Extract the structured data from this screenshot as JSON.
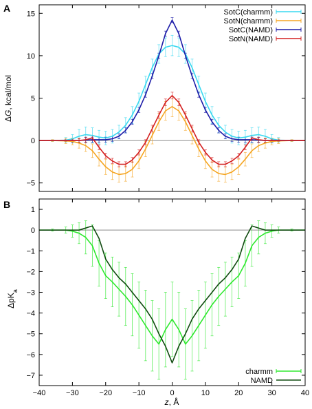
{
  "chart_data": [
    {
      "type": "line",
      "panel_label": "A",
      "ylabel": "ΔG, kcal/mol",
      "xlim": [
        -40,
        40
      ],
      "ylim": [
        -6,
        16
      ],
      "yticks": [
        -5,
        0,
        5,
        10,
        15
      ],
      "xticks": [
        -40,
        -30,
        -20,
        -10,
        0,
        10,
        20,
        30,
        40
      ],
      "zero_line": true,
      "legend_position": "top-right",
      "series": [
        {
          "name": "SotC(charmm)",
          "color": "#38d8f0",
          "error_bars": true,
          "x": [
            -40,
            -36,
            -32,
            -30,
            -28,
            -26,
            -24,
            -22,
            -20,
            -18,
            -16,
            -14,
            -12,
            -10,
            -8,
            -6,
            -4,
            -2,
            0,
            2,
            4,
            6,
            8,
            10,
            12,
            14,
            16,
            18,
            20,
            22,
            24,
            26,
            28,
            30,
            32,
            36,
            40
          ],
          "y": [
            0,
            0,
            0.05,
            0.2,
            0.5,
            0.7,
            0.6,
            0.4,
            0.3,
            0.5,
            1.0,
            1.8,
            3.0,
            4.6,
            6.6,
            8.6,
            10.2,
            11.0,
            11.2,
            11.0,
            10.2,
            8.6,
            6.6,
            4.6,
            3.0,
            1.8,
            1.0,
            0.5,
            0.3,
            0.4,
            0.6,
            0.7,
            0.5,
            0.2,
            0.05,
            0,
            0
          ],
          "err": [
            0,
            0.1,
            0.3,
            0.5,
            0.8,
            0.9,
            0.9,
            0.8,
            0.8,
            0.8,
            0.8,
            0.9,
            1.0,
            1.0,
            1.0,
            1.0,
            1.1,
            1.1,
            1.2,
            1.1,
            1.1,
            1.0,
            1.0,
            1.0,
            1.0,
            0.9,
            0.8,
            0.8,
            0.8,
            0.8,
            0.9,
            0.9,
            0.8,
            0.5,
            0.3,
            0.1,
            0
          ]
        },
        {
          "name": "SotN(charmm)",
          "color": "#f5a623",
          "error_bars": true,
          "x": [
            -40,
            -36,
            -32,
            -30,
            -28,
            -26,
            -24,
            -22,
            -20,
            -18,
            -16,
            -14,
            -12,
            -10,
            -8,
            -6,
            -4,
            -2,
            0,
            2,
            4,
            6,
            8,
            10,
            12,
            14,
            16,
            18,
            20,
            22,
            24,
            26,
            28,
            30,
            32,
            36,
            40
          ],
          "y": [
            0,
            0,
            -0.05,
            -0.1,
            -0.3,
            -0.6,
            -1.2,
            -2.2,
            -3.1,
            -3.7,
            -4.0,
            -3.9,
            -3.4,
            -2.4,
            -1.0,
            0.6,
            2.2,
            3.5,
            4.0,
            3.5,
            2.2,
            0.6,
            -1.0,
            -2.4,
            -3.4,
            -3.9,
            -4.0,
            -3.7,
            -3.1,
            -2.2,
            -1.2,
            -0.6,
            -0.3,
            -0.1,
            -0.05,
            0,
            0
          ],
          "err": [
            0,
            0.1,
            0.3,
            0.4,
            0.6,
            0.7,
            0.8,
            0.8,
            0.9,
            0.9,
            0.9,
            0.9,
            0.9,
            0.9,
            0.9,
            1.0,
            1.0,
            1.1,
            1.2,
            1.1,
            1.0,
            1.0,
            0.9,
            0.9,
            0.9,
            0.9,
            0.9,
            0.9,
            0.9,
            0.8,
            0.8,
            0.7,
            0.6,
            0.4,
            0.3,
            0.1,
            0
          ]
        },
        {
          "name": "SotC(NAMD)",
          "color": "#1c1ca8",
          "error_bars": true,
          "x": [
            -40,
            -36,
            -32,
            -30,
            -28,
            -26,
            -24,
            -22,
            -20,
            -18,
            -16,
            -14,
            -12,
            -10,
            -8,
            -6,
            -4,
            -2,
            0,
            2,
            4,
            6,
            8,
            10,
            12,
            14,
            16,
            18,
            20,
            22,
            24,
            26,
            28,
            30,
            32,
            36,
            40
          ],
          "y": [
            0,
            0,
            0,
            0,
            0,
            0.05,
            0.1,
            0.1,
            0.1,
            0.2,
            0.5,
            1.2,
            2.2,
            3.6,
            5.4,
            7.6,
            10.0,
            12.6,
            14.2,
            12.6,
            10.0,
            7.6,
            5.4,
            3.6,
            2.2,
            1.2,
            0.5,
            0.2,
            0.1,
            0.1,
            0.1,
            0.05,
            0,
            0,
            0,
            0,
            0
          ],
          "err": [
            0,
            0,
            0.1,
            0.2,
            0.2,
            0.3,
            0.3,
            0.3,
            0.3,
            0.3,
            0.3,
            0.3,
            0.3,
            0.3,
            0.3,
            0.3,
            0.3,
            0.3,
            0.3,
            0.3,
            0.3,
            0.3,
            0.3,
            0.3,
            0.3,
            0.3,
            0.3,
            0.3,
            0.3,
            0.3,
            0.3,
            0.3,
            0.2,
            0.2,
            0.1,
            0,
            0
          ]
        },
        {
          "name": "SotN(NAMD)",
          "color": "#d42020",
          "error_bars": true,
          "x": [
            -40,
            -36,
            -32,
            -30,
            -28,
            -26,
            -24,
            -22,
            -20,
            -18,
            -16,
            -14,
            -12,
            -10,
            -8,
            -6,
            -4,
            -2,
            0,
            2,
            4,
            6,
            8,
            10,
            12,
            14,
            16,
            18,
            20,
            22,
            24,
            26,
            28,
            30,
            32,
            36,
            40
          ],
          "y": [
            0,
            0,
            0,
            0,
            0,
            0.1,
            0.3,
            -0.8,
            -1.8,
            -2.4,
            -2.8,
            -2.8,
            -2.3,
            -1.4,
            -0.2,
            1.4,
            3.0,
            4.5,
            5.3,
            4.5,
            3.0,
            1.4,
            -0.2,
            -1.4,
            -2.3,
            -2.8,
            -2.8,
            -2.4,
            -1.8,
            -0.8,
            0.3,
            0.1,
            0,
            0,
            0,
            0,
            0
          ],
          "err": [
            0,
            0,
            0.1,
            0.1,
            0.2,
            0.3,
            0.3,
            0.3,
            0.3,
            0.3,
            0.3,
            0.3,
            0.3,
            0.3,
            0.3,
            0.4,
            0.4,
            0.4,
            0.4,
            0.4,
            0.4,
            0.4,
            0.3,
            0.3,
            0.3,
            0.3,
            0.3,
            0.3,
            0.3,
            0.3,
            0.3,
            0.3,
            0.2,
            0.1,
            0.1,
            0,
            0
          ]
        }
      ]
    },
    {
      "type": "line",
      "panel_label": "B",
      "ylabel": "ΔpKa",
      "xlabel": "z, Å",
      "xlim": [
        -40,
        40
      ],
      "ylim": [
        -7.5,
        1.5
      ],
      "yticks": [
        -7,
        -6,
        -5,
        -4,
        -3,
        -2,
        -1,
        0,
        1
      ],
      "xticks": [
        -40,
        -30,
        -20,
        -10,
        0,
        10,
        20,
        30,
        40
      ],
      "zero_line": true,
      "legend_position": "bottom-right",
      "series": [
        {
          "name": "charmm",
          "color": "#2ee82e",
          "error_bars": true,
          "x": [
            -40,
            -36,
            -32,
            -30,
            -28,
            -26,
            -24,
            -22,
            -20,
            -18,
            -16,
            -14,
            -12,
            -10,
            -8,
            -6,
            -4,
            -2,
            0,
            2,
            4,
            6,
            8,
            10,
            12,
            14,
            16,
            18,
            20,
            22,
            24,
            26,
            28,
            30,
            32,
            36,
            40
          ],
          "y": [
            0,
            0,
            0,
            -0.05,
            -0.15,
            -0.35,
            -0.75,
            -1.6,
            -2.2,
            -2.5,
            -2.85,
            -3.2,
            -3.6,
            -4.1,
            -4.6,
            -5.1,
            -5.5,
            -4.8,
            -4.3,
            -4.8,
            -5.5,
            -5.1,
            -4.6,
            -4.1,
            -3.6,
            -3.2,
            -2.85,
            -2.5,
            -2.2,
            -1.6,
            -0.75,
            -0.35,
            -0.15,
            -0.05,
            0,
            0,
            0
          ],
          "err": [
            0,
            0.05,
            0.15,
            0.3,
            0.5,
            0.8,
            1.0,
            1.1,
            1.1,
            1.2,
            1.3,
            1.4,
            1.5,
            1.6,
            1.7,
            1.7,
            1.7,
            1.8,
            1.8,
            1.8,
            1.7,
            1.7,
            1.7,
            1.6,
            1.5,
            1.4,
            1.3,
            1.2,
            1.1,
            1.1,
            1.0,
            0.8,
            0.5,
            0.3,
            0.15,
            0.05,
            0
          ]
        },
        {
          "name": "NAMD",
          "color": "#0f4a0f",
          "error_bars": false,
          "x": [
            -40,
            -36,
            -32,
            -30,
            -28,
            -26,
            -24,
            -22,
            -20,
            -18,
            -16,
            -14,
            -12,
            -10,
            -8,
            -6,
            -4,
            -2,
            0,
            2,
            4,
            6,
            8,
            10,
            12,
            14,
            16,
            18,
            20,
            22,
            24,
            26,
            28,
            30,
            32,
            36,
            40
          ],
          "y": [
            0,
            0,
            0,
            0,
            0,
            0.1,
            0.2,
            -0.4,
            -1.4,
            -1.9,
            -2.3,
            -2.6,
            -3.0,
            -3.4,
            -3.8,
            -4.3,
            -5.0,
            -5.6,
            -6.4,
            -5.6,
            -5.0,
            -4.3,
            -3.8,
            -3.4,
            -3.0,
            -2.6,
            -2.3,
            -1.9,
            -1.4,
            -0.4,
            0.2,
            0.1,
            0,
            0,
            0,
            0,
            0
          ]
        }
      ]
    }
  ]
}
